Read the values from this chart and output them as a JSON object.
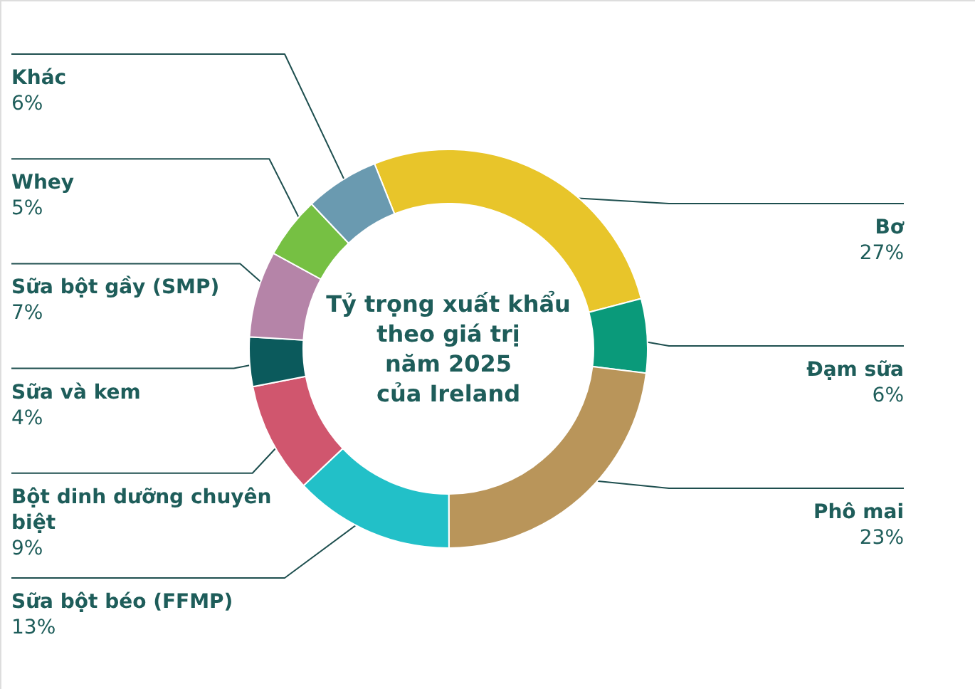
{
  "chart_data": {
    "type": "donut",
    "title": "Tỷ trọng xuất khẩu\ntheo giá trị\nnăm 2025\ncủa Ireland",
    "categories": [
      "Bơ",
      "Đạm sữa",
      "Phô mai",
      "Sữa bột béo (FFMP)",
      "Bột dinh dưỡng chuyên biệt",
      "Sữa và kem",
      "Sữa bột gầy (SMP)",
      "Whey",
      "Khác"
    ],
    "values": [
      27,
      6,
      23,
      13,
      9,
      4,
      7,
      5,
      6
    ],
    "value_labels": [
      "27%",
      "6%",
      "23%",
      "13%",
      "9%",
      "4%",
      "7%",
      "5%",
      "6%"
    ],
    "colors": [
      "#e8c52a",
      "#0a9a7a",
      "#b9955a",
      "#22c0c8",
      "#d0566e",
      "#0b5a5c",
      "#b584a8",
      "#76c043",
      "#6a9ab0"
    ]
  }
}
